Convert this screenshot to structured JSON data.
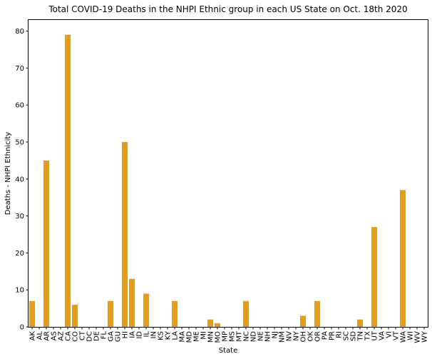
{
  "chart_data": {
    "type": "bar",
    "title": "Total COVID-19 Deaths in the NHPI Ethnic group in each US State on Oct. 18th 2020",
    "xlabel": "State",
    "ylabel": "Deaths - NHPI Ethnicity",
    "ylim": [
      0,
      83
    ],
    "yticks": [
      0,
      10,
      20,
      30,
      40,
      50,
      60,
      70,
      80
    ],
    "grid": false,
    "bar_color": "#e09d24",
    "categories": [
      "AK",
      "AL",
      "AR",
      "AS",
      "AZ",
      "CA",
      "CO",
      "CT",
      "DC",
      "DE",
      "FL",
      "GA",
      "GU",
      "HI",
      "IA",
      "ID",
      "IL",
      "IN",
      "KS",
      "KY",
      "LA",
      "MA",
      "MD",
      "ME",
      "MI",
      "MN",
      "MO",
      "MP",
      "MS",
      "MT",
      "NC",
      "ND",
      "NE",
      "NH",
      "NJ",
      "NM",
      "NV",
      "NY",
      "OH",
      "OK",
      "OR",
      "PA",
      "PR",
      "RI",
      "SC",
      "SD",
      "TN",
      "TX",
      "UT",
      "VA",
      "VI",
      "VT",
      "WA",
      "WI",
      "WV",
      "WY"
    ],
    "values": [
      7,
      0,
      45,
      0,
      0,
      79,
      6,
      0,
      0,
      0,
      0,
      7,
      0,
      50,
      13,
      0,
      9,
      0,
      0,
      0,
      7,
      0,
      0,
      0,
      0,
      2,
      1,
      0,
      0,
      0,
      7,
      0,
      0,
      0,
      0,
      0,
      0,
      0,
      3,
      0,
      7,
      0,
      0,
      0,
      0,
      0,
      2,
      0,
      27,
      0,
      0,
      0,
      37,
      0,
      0,
      0
    ]
  }
}
